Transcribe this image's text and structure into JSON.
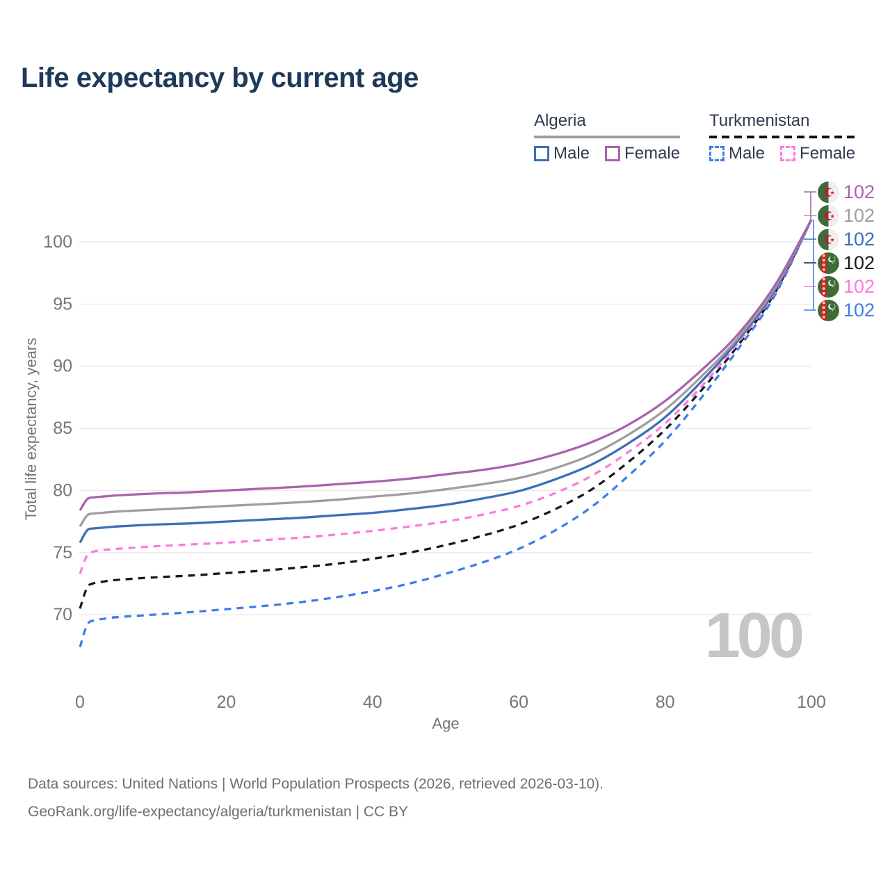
{
  "header": {
    "title": "Life expectancy by current age"
  },
  "legend": {
    "groups": [
      {
        "country": "Algeria",
        "line_style": "solid",
        "items": [
          {
            "id": "algeria-male",
            "label": "Male"
          },
          {
            "id": "algeria-female",
            "label": "Female"
          }
        ]
      },
      {
        "country": "Turkmenistan",
        "line_style": "dashed",
        "items": [
          {
            "id": "turkmenistan-male",
            "label": "Male"
          },
          {
            "id": "turkmenistan-female",
            "label": "Female"
          }
        ]
      }
    ]
  },
  "chart_data": {
    "type": "line",
    "title": "Life expectancy by current age",
    "xlabel": "Age",
    "ylabel": "Total life expectancy, years",
    "xlim": [
      0,
      100
    ],
    "ylim": [
      66.5,
      103
    ],
    "x_ticks": [
      0,
      20,
      40,
      60,
      80,
      100
    ],
    "y_ticks": [
      70,
      75,
      80,
      85,
      90,
      95,
      100
    ],
    "grid": "horizontal-only",
    "age_counter": "100",
    "series": [
      {
        "id": "turkmenistan-male",
        "name": "Turkmenistan Male",
        "color": "#3f7ee8",
        "dashed": true,
        "flag": "tm",
        "points": [
          [
            0,
            67.4
          ],
          [
            1,
            69.2
          ],
          [
            2,
            69.55
          ],
          [
            3,
            69.65
          ],
          [
            5,
            69.8
          ],
          [
            10,
            70.0
          ],
          [
            15,
            70.2
          ],
          [
            20,
            70.45
          ],
          [
            25,
            70.7
          ],
          [
            30,
            71.0
          ],
          [
            35,
            71.4
          ],
          [
            40,
            71.9
          ],
          [
            45,
            72.5
          ],
          [
            50,
            73.3
          ],
          [
            55,
            74.2
          ],
          [
            60,
            75.3
          ],
          [
            65,
            76.8
          ],
          [
            70,
            78.7
          ],
          [
            75,
            81.2
          ],
          [
            80,
            84.0
          ],
          [
            85,
            87.5
          ],
          [
            90,
            91.4
          ],
          [
            95,
            95.7
          ],
          [
            100,
            101.8
          ]
        ]
      },
      {
        "id": "turkmenistan-all",
        "name": "Turkmenistan",
        "color": "#1a1a1a",
        "dashed": true,
        "flag": "tm",
        "points": [
          [
            0,
            70.5
          ],
          [
            1,
            72.2
          ],
          [
            2,
            72.55
          ],
          [
            3,
            72.65
          ],
          [
            5,
            72.8
          ],
          [
            10,
            73.0
          ],
          [
            15,
            73.15
          ],
          [
            20,
            73.35
          ],
          [
            25,
            73.55
          ],
          [
            30,
            73.8
          ],
          [
            35,
            74.1
          ],
          [
            40,
            74.5
          ],
          [
            45,
            75.0
          ],
          [
            50,
            75.6
          ],
          [
            55,
            76.35
          ],
          [
            60,
            77.25
          ],
          [
            65,
            78.5
          ],
          [
            70,
            80.1
          ],
          [
            75,
            82.3
          ],
          [
            80,
            84.9
          ],
          [
            85,
            88.1
          ],
          [
            90,
            91.7
          ],
          [
            95,
            95.9
          ],
          [
            100,
            101.8
          ]
        ]
      },
      {
        "id": "turkmenistan-female",
        "name": "Turkmenistan Female",
        "color": "#ff7ade",
        "dashed": true,
        "flag": "tm",
        "points": [
          [
            0,
            73.3
          ],
          [
            1,
            74.8
          ],
          [
            2,
            75.1
          ],
          [
            3,
            75.2
          ],
          [
            5,
            75.3
          ],
          [
            10,
            75.5
          ],
          [
            15,
            75.65
          ],
          [
            20,
            75.8
          ],
          [
            25,
            76.0
          ],
          [
            30,
            76.2
          ],
          [
            35,
            76.45
          ],
          [
            40,
            76.75
          ],
          [
            45,
            77.1
          ],
          [
            50,
            77.5
          ],
          [
            55,
            78.05
          ],
          [
            60,
            78.75
          ],
          [
            65,
            79.8
          ],
          [
            70,
            81.2
          ],
          [
            75,
            83.1
          ],
          [
            80,
            85.4
          ],
          [
            85,
            88.4
          ],
          [
            90,
            91.9
          ],
          [
            95,
            96.0
          ],
          [
            100,
            101.8
          ]
        ]
      },
      {
        "id": "algeria-male",
        "name": "Algeria Male",
        "color": "#3d6eb8",
        "dashed": false,
        "flag": "dz",
        "points": [
          [
            0,
            75.8
          ],
          [
            1,
            76.8
          ],
          [
            2,
            76.95
          ],
          [
            3,
            77.0
          ],
          [
            5,
            77.1
          ],
          [
            10,
            77.25
          ],
          [
            15,
            77.35
          ],
          [
            20,
            77.5
          ],
          [
            25,
            77.65
          ],
          [
            30,
            77.8
          ],
          [
            35,
            78.0
          ],
          [
            40,
            78.2
          ],
          [
            45,
            78.5
          ],
          [
            50,
            78.85
          ],
          [
            55,
            79.35
          ],
          [
            60,
            79.95
          ],
          [
            65,
            80.9
          ],
          [
            70,
            82.1
          ],
          [
            75,
            83.8
          ],
          [
            80,
            85.9
          ],
          [
            85,
            88.8
          ],
          [
            90,
            92.1
          ],
          [
            95,
            96.1
          ],
          [
            100,
            101.8
          ]
        ]
      },
      {
        "id": "algeria-all",
        "name": "Algeria",
        "color": "#9e9e9e",
        "dashed": false,
        "flag": "dz",
        "points": [
          [
            0,
            77.1
          ],
          [
            1,
            78.0
          ],
          [
            2,
            78.15
          ],
          [
            3,
            78.2
          ],
          [
            5,
            78.3
          ],
          [
            10,
            78.45
          ],
          [
            15,
            78.6
          ],
          [
            20,
            78.75
          ],
          [
            25,
            78.9
          ],
          [
            30,
            79.05
          ],
          [
            35,
            79.25
          ],
          [
            40,
            79.5
          ],
          [
            45,
            79.75
          ],
          [
            50,
            80.1
          ],
          [
            55,
            80.5
          ],
          [
            60,
            81.0
          ],
          [
            65,
            81.8
          ],
          [
            70,
            82.9
          ],
          [
            75,
            84.5
          ],
          [
            80,
            86.5
          ],
          [
            85,
            89.2
          ],
          [
            90,
            92.3
          ],
          [
            95,
            96.3
          ],
          [
            100,
            101.8
          ]
        ]
      },
      {
        "id": "algeria-female",
        "name": "Algeria Female",
        "color": "#a963ae",
        "dashed": false,
        "flag": "dz",
        "points": [
          [
            0,
            78.4
          ],
          [
            1,
            79.3
          ],
          [
            2,
            79.45
          ],
          [
            3,
            79.5
          ],
          [
            5,
            79.6
          ],
          [
            10,
            79.75
          ],
          [
            15,
            79.85
          ],
          [
            20,
            80.0
          ],
          [
            25,
            80.15
          ],
          [
            30,
            80.3
          ],
          [
            35,
            80.5
          ],
          [
            40,
            80.7
          ],
          [
            45,
            80.95
          ],
          [
            50,
            81.3
          ],
          [
            55,
            81.65
          ],
          [
            60,
            82.15
          ],
          [
            65,
            82.9
          ],
          [
            70,
            83.9
          ],
          [
            75,
            85.3
          ],
          [
            80,
            87.2
          ],
          [
            85,
            89.7
          ],
          [
            90,
            92.6
          ],
          [
            95,
            96.5
          ],
          [
            100,
            101.8
          ]
        ]
      }
    ],
    "end_labels": [
      {
        "series": "algeria-female",
        "value": "102",
        "flag": "dz"
      },
      {
        "series": "algeria-all",
        "value": "102",
        "flag": "dz"
      },
      {
        "series": "algeria-male",
        "value": "102",
        "flag": "dz"
      },
      {
        "series": "turkmenistan-all",
        "value": "102",
        "flag": "tm"
      },
      {
        "series": "turkmenistan-female",
        "value": "102",
        "flag": "tm"
      },
      {
        "series": "turkmenistan-male",
        "value": "102",
        "flag": "tm"
      }
    ]
  },
  "footer": {
    "line1": "Data sources: United Nations | World Population Prospects (2026, retrieved 2026-03-10).",
    "line2": "GeoRank.org/life-expectancy/algeria/turkmenistan | CC BY"
  }
}
